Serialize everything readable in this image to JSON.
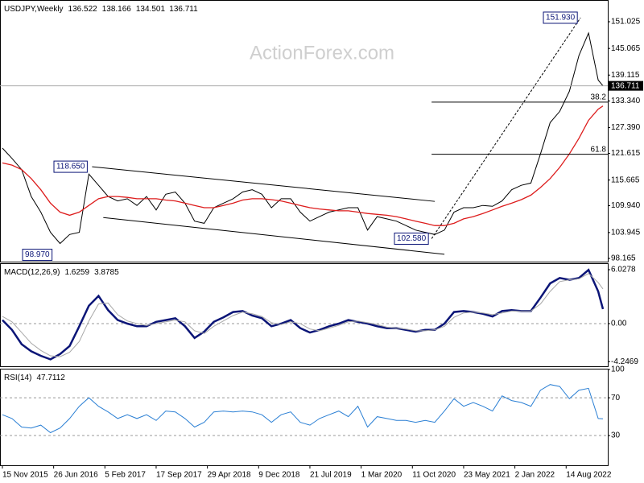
{
  "chart_data": [
    {
      "type": "line",
      "title": "USDJPY,Weekly",
      "ohlc": [
        136.522,
        138.166,
        134.501,
        136.711
      ],
      "watermark": "ActionForex.com",
      "x": [
        0,
        6,
        12,
        18,
        24,
        30,
        36,
        42,
        48,
        54,
        60,
        66,
        72,
        78,
        84,
        90,
        96,
        102,
        108,
        114,
        120,
        126,
        132,
        138,
        144,
        150,
        156,
        162,
        168,
        174,
        180,
        186,
        192,
        198,
        204,
        210,
        216,
        222,
        228,
        234,
        240,
        246,
        252,
        258,
        264,
        270,
        276,
        282,
        288,
        294,
        300,
        306,
        312,
        318,
        324,
        330,
        336,
        342,
        348,
        354,
        360,
        366,
        372,
        375
      ],
      "xlim": [
        -1.5,
        378
      ],
      "xticks": [
        {
          "value": 0,
          "label": "15 Nov 2015"
        },
        {
          "value": 32,
          "label": "26 Jun 2016"
        },
        {
          "value": 64,
          "label": "5 Feb 2017"
        },
        {
          "value": 96,
          "label": "17 Sep 2017"
        },
        {
          "value": 128,
          "label": "29 Apr 2018"
        },
        {
          "value": 160,
          "label": "9 Dec 2018"
        },
        {
          "value": 192,
          "label": "21 Jul 2019"
        },
        {
          "value": 224,
          "label": "1 Mar 2020"
        },
        {
          "value": 256,
          "label": "11 Oct 2020"
        },
        {
          "value": 288,
          "label": "23 May 2021"
        },
        {
          "value": 320,
          "label": "2 Jan 2022"
        },
        {
          "value": 352,
          "label": "14 Aug 2022"
        }
      ],
      "ylim": [
        97.45,
        155.88
      ],
      "yticks": [
        151.025,
        145.065,
        139.115,
        {
          "value": 133.34,
          "label": "133.340"
        },
        {
          "value": 127.39,
          "label": "127.390"
        },
        121.615,
        115.665,
        {
          "value": 109.94,
          "label": "109.940"
        },
        103.945,
        98.165
      ],
      "series": [
        {
          "name": "USDJPY",
          "color": "#000000",
          "values": [
            122.8,
            120.5,
            118,
            112,
            108.5,
            104,
            101.5,
            103.5,
            104,
            117,
            114.5,
            112,
            111,
            111.5,
            110,
            112,
            109,
            112.5,
            113,
            110.5,
            106.5,
            106,
            109.5,
            110.5,
            111.5,
            113,
            113.5,
            112.5,
            109.5,
            111.5,
            111.5,
            108.5,
            106.5,
            107.5,
            108.5,
            109,
            109.5,
            109.5,
            104.5,
            107.5,
            107,
            106.5,
            105.5,
            104.5,
            104,
            103.5,
            104.5,
            108.5,
            109.5,
            109.5,
            110,
            109.8,
            111,
            113.5,
            114.5,
            115,
            121.5,
            128.5,
            131,
            135.5,
            143.5,
            148.5,
            138,
            136.711
          ]
        },
        {
          "name": "MA",
          "color": "#dd1c1c",
          "values": [
            119.5,
            119,
            118,
            116,
            113.5,
            110.5,
            108.5,
            107.8,
            108.5,
            110,
            111.5,
            112,
            112,
            111.8,
            111.5,
            111.5,
            111.5,
            111.2,
            111,
            110.5,
            110,
            109.5,
            109.5,
            110,
            110.5,
            111.2,
            111.5,
            111.5,
            111.3,
            111,
            110.5,
            110,
            109.5,
            109.2,
            109,
            108.8,
            108.8,
            108.5,
            108.2,
            108,
            107.8,
            107.5,
            107,
            106.5,
            106,
            105.5,
            105.5,
            106,
            107,
            107.5,
            108.2,
            109,
            109.8,
            110.5,
            111.3,
            112.3,
            114,
            116,
            118.5,
            121.5,
            125,
            129,
            131.5,
            132.2
          ]
        }
      ],
      "annotations": [
        {
          "x": 55,
          "value": 118.65,
          "label": "118.650"
        },
        {
          "x": 33,
          "value": 98.97,
          "label": "98.970"
        },
        {
          "x": 268,
          "value": 102.58,
          "label": "102.580"
        },
        {
          "x": 361,
          "value": 151.93,
          "label": "151.930"
        }
      ],
      "trendlines": [
        {
          "x": [
            56,
            270
          ],
          "y": [
            118.65,
            110.9
          ],
          "style": "solid"
        },
        {
          "x": [
            63,
            276
          ],
          "y": [
            107.3,
            99.1
          ],
          "style": "solid"
        },
        {
          "x": [
            268,
            361
          ],
          "y": [
            102.58,
            151.93
          ],
          "style": "dotted"
        }
      ],
      "fib_levels": [
        {
          "ratio": 38.2,
          "value": 133.08,
          "x": 268
        },
        {
          "ratio": 61.8,
          "value": 121.43,
          "x": 268
        }
      ]
    },
    {
      "type": "line",
      "title": "MACD(12,26,9)",
      "readout": [
        1.6259,
        3.8785
      ],
      "ylim": [
        -4.77,
        6.75
      ],
      "yticks": [
        6.0278,
        {
          "value": 0,
          "label": "0.00"
        },
        -4.2469
      ],
      "levels": [
        0
      ],
      "series": [
        {
          "name": "MACD",
          "color": "#0b1577",
          "values": [
            0.4,
            -0.7,
            -2.3,
            -3.1,
            -3.6,
            -4,
            -3.4,
            -2.5,
            -0.3,
            2,
            3.1,
            1.5,
            0.4,
            0,
            -0.3,
            -0.3,
            0.2,
            0.4,
            0.6,
            -0.3,
            -1.6,
            -0.9,
            0.2,
            0.7,
            1.3,
            1.4,
            0.9,
            0.6,
            -0.3,
            0,
            0.4,
            -0.5,
            -1,
            -0.7,
            -0.3,
            0,
            0.4,
            0.2,
            0,
            -0.3,
            -0.5,
            -0.5,
            -0.7,
            -0.9,
            -0.7,
            -0.7,
            0,
            1.3,
            1.4,
            1.3,
            1.1,
            0.8,
            1.4,
            1.5,
            1.4,
            1.4,
            2.9,
            4.5,
            5.1,
            4.9,
            5.1,
            6,
            3.6,
            1.6259
          ]
        },
        {
          "name": "Signal",
          "color": "#a8a8a8",
          "values": [
            0.8,
            0.2,
            -1,
            -2.2,
            -3,
            -3.6,
            -3.7,
            -3.2,
            -2,
            0.3,
            2.2,
            2.3,
            1,
            0.3,
            0,
            -0.2,
            0,
            0.2,
            0.4,
            0.2,
            -0.8,
            -1.1,
            -0.3,
            0.3,
            0.9,
            1.3,
            1.1,
            0.8,
            0.1,
            -0.1,
            0.2,
            0,
            -0.6,
            -0.8,
            -0.5,
            -0.2,
            0.2,
            0.3,
            0.1,
            -0.1,
            -0.4,
            -0.5,
            -0.6,
            -0.8,
            -0.8,
            -0.7,
            -0.3,
            0.7,
            1.2,
            1.3,
            1.2,
            1,
            1.2,
            1.4,
            1.4,
            1.4,
            2.2,
            3.6,
            4.7,
            4.9,
            5,
            5.6,
            4.6,
            3.8785
          ]
        }
      ]
    },
    {
      "type": "line",
      "title": "RSI(14)",
      "readout": [
        47.7112
      ],
      "ylim": [
        -1.5,
        100.8
      ],
      "yticks": [
        100,
        70,
        30
      ],
      "levels": [
        70,
        30
      ],
      "series": [
        {
          "name": "RSI",
          "color": "#2a7fd4",
          "values": [
            52,
            48,
            39,
            38,
            41,
            33,
            38,
            48,
            61,
            70,
            61,
            55,
            48,
            52,
            48,
            52,
            46,
            56,
            55,
            48,
            39,
            44,
            55,
            56,
            55,
            56,
            55,
            52,
            44,
            52,
            55,
            44,
            41,
            48,
            52,
            56,
            50,
            61,
            39,
            50,
            48,
            46,
            46,
            44,
            46,
            44,
            56,
            69,
            61,
            65,
            61,
            56,
            72,
            67,
            65,
            61,
            78,
            84,
            82,
            69,
            78,
            80,
            48,
            47.7112
          ]
        }
      ]
    }
  ]
}
